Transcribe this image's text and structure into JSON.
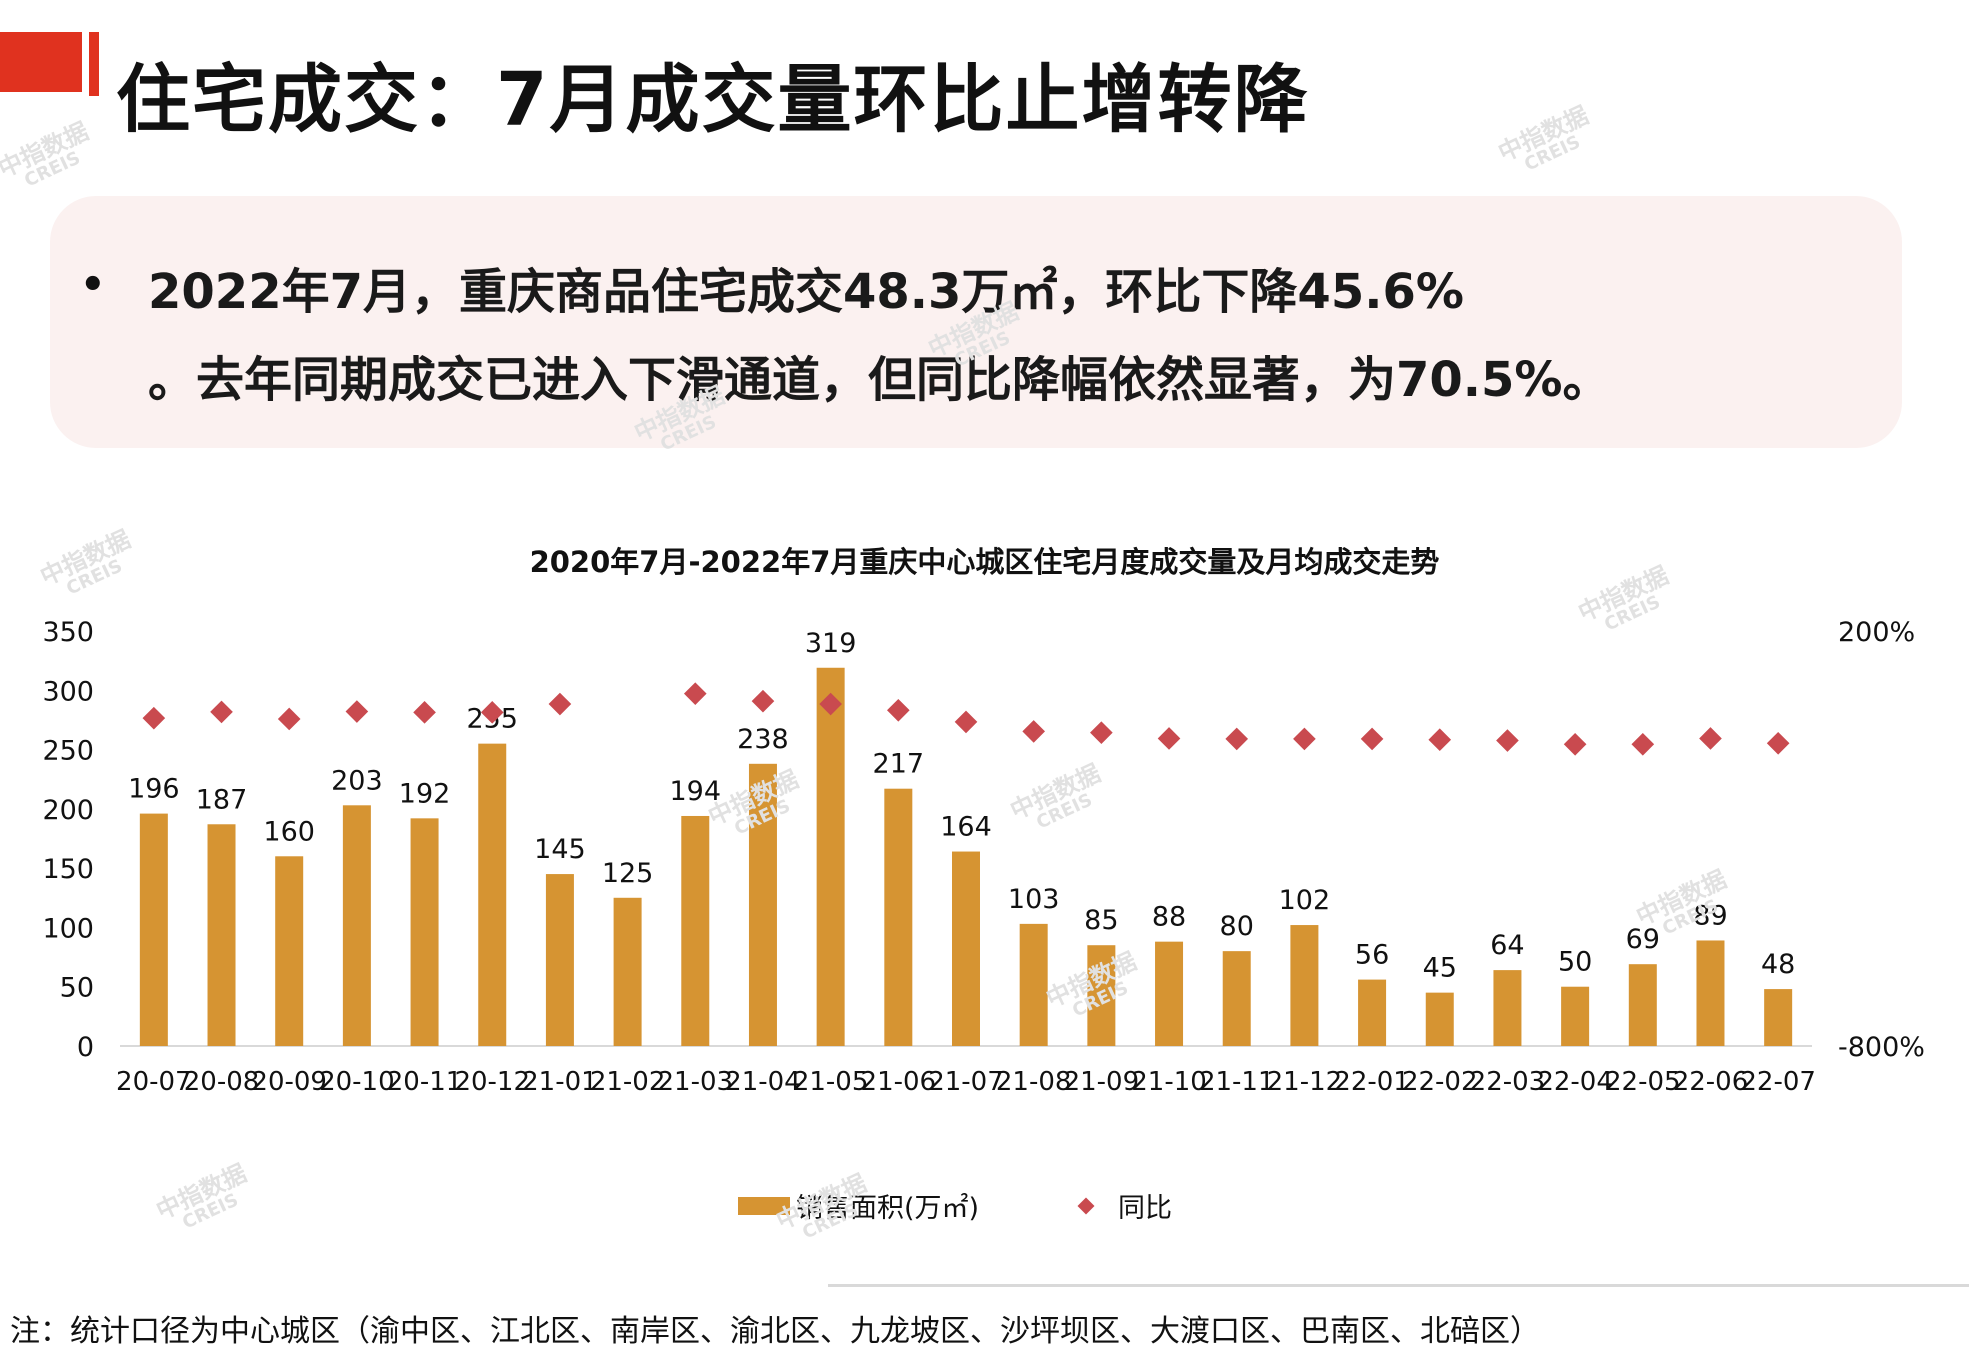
{
  "page": {
    "title": "住宅成交：7月成交量环比止增转降"
  },
  "summary": {
    "bullet": "•",
    "line1": "2022年7月，重庆商品住宅成交48.3万㎡，环比下降45.6%",
    "line2": "。去年同期成交已进入下滑通道，但同比降幅依然显著，为70.5%。"
  },
  "chart_data": {
    "type": "bar",
    "title": "2020年7月-2022年7月重庆中心城区住宅月度成交量及月均成交走势",
    "categories": [
      "20-07",
      "20-08",
      "20-09",
      "20-10",
      "20-11",
      "20-12",
      "21-01",
      "21-02",
      "21-03",
      "21-04",
      "21-05",
      "21-06",
      "21-07",
      "21-08",
      "21-09",
      "21-10",
      "21-11",
      "21-12",
      "22-01",
      "22-02",
      "22-03",
      "22-04",
      "22-05",
      "22-06",
      "22-07"
    ],
    "series": [
      {
        "name": "销售面积(万㎡)",
        "type": "bar",
        "axis": "left",
        "color": "#d69432",
        "values": [
          196,
          187,
          160,
          203,
          192,
          255,
          145,
          125,
          194,
          238,
          319,
          217,
          164,
          103,
          85,
          88,
          80,
          102,
          56,
          45,
          64,
          50,
          69,
          89,
          48
        ],
        "labels": [
          "196",
          "187",
          "160",
          "203",
          "192",
          "255",
          "145",
          "125",
          "194",
          "238",
          "319",
          "217",
          "164",
          "103",
          "85",
          "88",
          "80",
          "102",
          "56",
          "45",
          "64",
          "50",
          "69",
          "89",
          "48"
        ]
      },
      {
        "name": "同比",
        "type": "scatter",
        "axis": "right",
        "color": "#c94a4f",
        "marker": "diamond",
        "values": [
          -10,
          5,
          -12,
          6,
          4,
          4,
          24,
          null,
          49,
          31,
          24,
          9,
          -19,
          -42,
          -45,
          -59,
          -60,
          -60,
          -60,
          -62,
          -64,
          -73,
          -73,
          -59,
          -70.5
        ]
      }
    ],
    "y_left": {
      "min": 0,
      "max": 350,
      "ticks": [
        "0",
        "50",
        "100",
        "150",
        "200",
        "250",
        "300",
        "350"
      ]
    },
    "y_right": {
      "min": -800,
      "max": 200,
      "ticks": [
        "200%",
        "-800%"
      ]
    },
    "legend_position": "bottom"
  },
  "footnote": "注：统计口径为中心城区（渝中区、江北区、南岸区、渝北区、九龙坡区、沙坪坝区、大渡口区、巴南区、北碚区）",
  "watermark": {
    "cn": "中指数据",
    "en": "CREIS"
  }
}
